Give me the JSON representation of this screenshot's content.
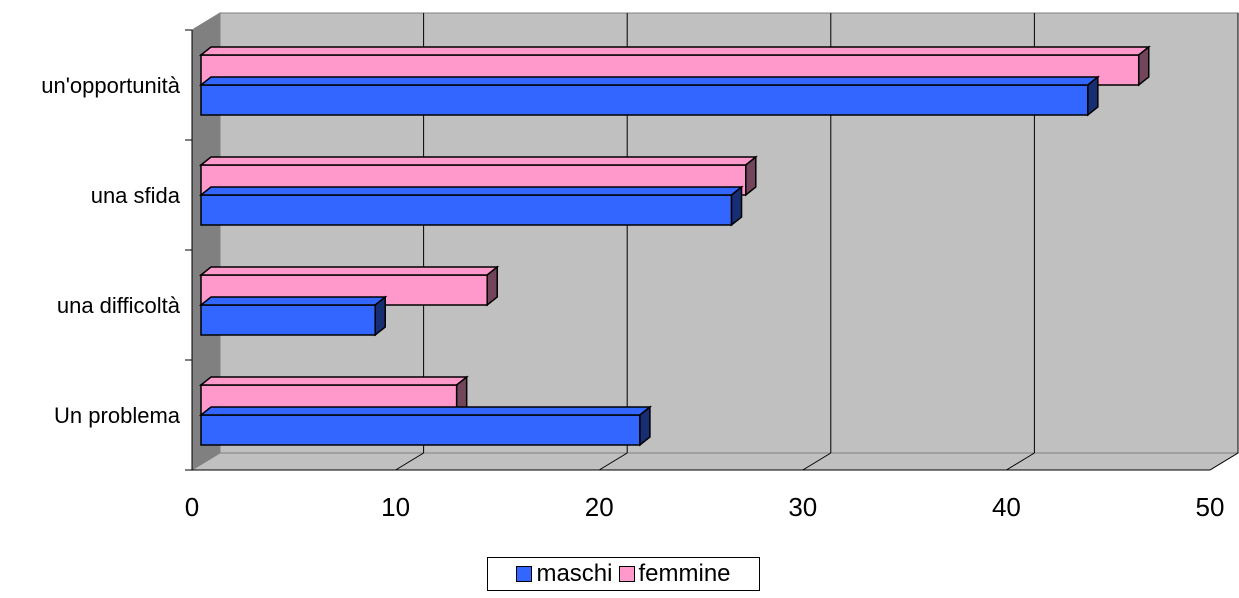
{
  "chart_data": {
    "type": "bar",
    "orientation": "horizontal",
    "style": "3d",
    "categories": [
      "Un problema",
      "una difficoltà",
      "una sfida",
      "un'opportunità"
    ],
    "series": [
      {
        "name": "maschi",
        "values": [
          22,
          9,
          26.5,
          44
        ],
        "color": "#3366ff"
      },
      {
        "name": "femmine",
        "values": [
          13,
          14.5,
          27.2,
          46.5
        ],
        "color": "#ff99cc"
      }
    ],
    "xlim": [
      0,
      50
    ],
    "xticks": [
      0,
      10,
      20,
      30,
      40,
      50
    ],
    "x_tick_labels": [
      "0",
      "10",
      "20",
      "30",
      "40",
      "50"
    ],
    "grid": true,
    "legend_position": "bottom",
    "wall_color": "#c0c0c0"
  }
}
